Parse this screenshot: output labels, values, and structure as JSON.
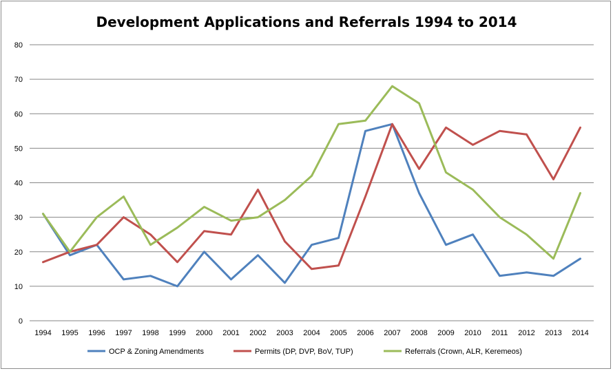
{
  "chart_data": {
    "type": "line",
    "title": "Development Applications and Referrals 1994 to 2014",
    "xlabel": "",
    "ylabel": "",
    "categories": [
      "1994",
      "1995",
      "1996",
      "1997",
      "1998",
      "1999",
      "2000",
      "2001",
      "2002",
      "2003",
      "2004",
      "2005",
      "2006",
      "2007",
      "2008",
      "2009",
      "2010",
      "2011",
      "2012",
      "2013",
      "2014"
    ],
    "ylim": [
      0,
      80
    ],
    "yticks": [
      0,
      10,
      20,
      30,
      40,
      50,
      60,
      70,
      80
    ],
    "grid": true,
    "legend_position": "bottom",
    "series": [
      {
        "name": "OCP & Zoning Amendments",
        "color": "#4f81bd",
        "values": [
          31,
          19,
          22,
          12,
          13,
          10,
          20,
          12,
          19,
          11,
          22,
          24,
          55,
          57,
          37,
          22,
          25,
          13,
          14,
          13,
          18
        ]
      },
      {
        "name": "Permits (DP, DVP, BoV, TUP)",
        "color": "#c0504d",
        "values": [
          17,
          20,
          22,
          30,
          25,
          17,
          26,
          25,
          38,
          23,
          15,
          16,
          36,
          57,
          44,
          56,
          51,
          55,
          54,
          41,
          56
        ]
      },
      {
        "name": "Referrals (Crown, ALR, Keremeos)",
        "color": "#9bbb59",
        "values": [
          31,
          20,
          30,
          36,
          22,
          27,
          33,
          29,
          30,
          35,
          42,
          57,
          58,
          68,
          63,
          43,
          38,
          30,
          25,
          18,
          37
        ]
      }
    ]
  }
}
